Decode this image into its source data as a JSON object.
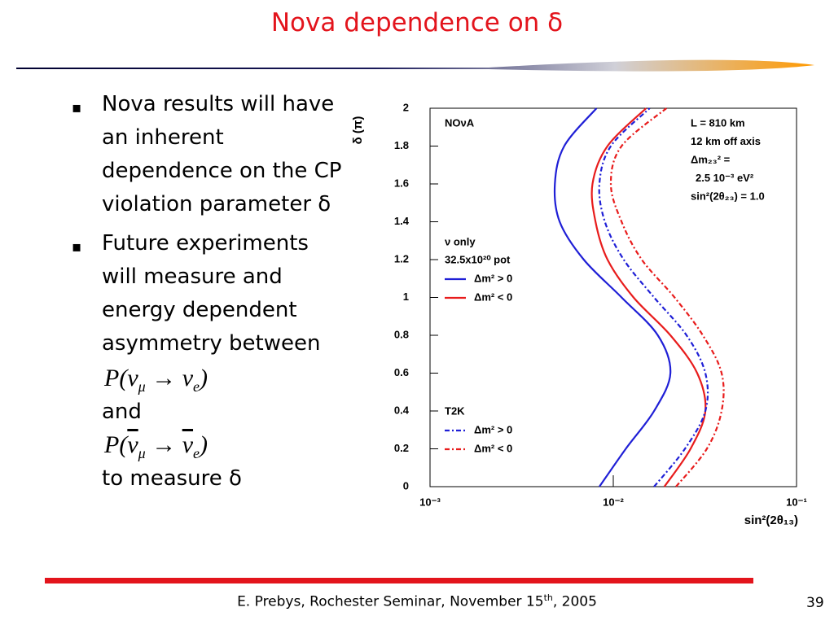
{
  "title": "Nova dependence on δ",
  "bullets": [
    {
      "lines": [
        "Nova results will have",
        "an inherent",
        "dependence on the CP",
        "violation parameter δ"
      ]
    },
    {
      "lines": [
        "Future experiments",
        "will measure and",
        "energy dependent",
        "asymmetry between"
      ],
      "formula1": [
        "P(",
        "ν",
        "μ",
        " → ",
        "ν",
        "e",
        ")"
      ],
      "and": "and",
      "formula2": [
        "P(",
        "ν",
        "μ",
        " → ",
        "ν",
        "e",
        ")"
      ],
      "end": "to measure δ"
    }
  ],
  "footer": [
    "E. Prebys, Rochester Seminar, November 15",
    "th",
    ", 2005"
  ],
  "page_number": "39",
  "chart_data": {
    "type": "line",
    "x_label": "sin²(2θ₁₃)",
    "y_label": "δ (π)",
    "xscale": "log",
    "xlim": [
      0.001,
      0.1
    ],
    "xticks": [
      {
        "value": 0.001,
        "label": "10⁻³"
      },
      {
        "value": 0.01,
        "label": "10⁻²"
      },
      {
        "value": 0.1,
        "label": "10⁻¹"
      }
    ],
    "ylim": [
      0,
      2
    ],
    "yticks": [
      0,
      0.2,
      0.4,
      0.6,
      0.8,
      1,
      1.2,
      1.4,
      1.6,
      1.8,
      2
    ],
    "y": [
      0,
      0.2,
      0.4,
      0.6,
      0.8,
      1.0,
      1.2,
      1.4,
      1.6,
      1.8,
      2.0
    ],
    "labels": {
      "nova": "NOνA",
      "nu_only": "ν only",
      "pot": "32.5x10²⁰ pot",
      "t2k": "T2K"
    },
    "annotation": [
      "L = 810 km",
      "12 km off axis",
      "Δm₂₃² =",
      "2.5 10⁻³ eV²",
      "sin²(2θ₂₃) = 1.0"
    ],
    "series": [
      {
        "name": "Δm² > 0",
        "color": "#1f1fd6",
        "dash": "solid",
        "x": [
          0.0084,
          0.0117,
          0.0167,
          0.0205,
          0.0175,
          0.0111,
          0.0069,
          0.0051,
          0.0048,
          0.0054,
          0.0081
        ]
      },
      {
        "name": "Δm² < 0",
        "color": "#e81c1c",
        "dash": "solid",
        "x": [
          0.019,
          0.0264,
          0.0318,
          0.0287,
          0.0205,
          0.0129,
          0.0093,
          0.008,
          0.0077,
          0.0093,
          0.0151
        ]
      },
      {
        "name": "Δm² > 0",
        "color": "#1f1fd6",
        "dash": "dashdot",
        "x": [
          0.0167,
          0.0246,
          0.0318,
          0.0318,
          0.0251,
          0.0167,
          0.0114,
          0.009,
          0.0084,
          0.0097,
          0.0158
        ]
      },
      {
        "name": "Δm² < 0",
        "color": "#e81c1c",
        "dash": "dashdot",
        "x": [
          0.022,
          0.0324,
          0.039,
          0.039,
          0.0308,
          0.0216,
          0.0143,
          0.0111,
          0.0097,
          0.0111,
          0.0195
        ]
      }
    ]
  }
}
